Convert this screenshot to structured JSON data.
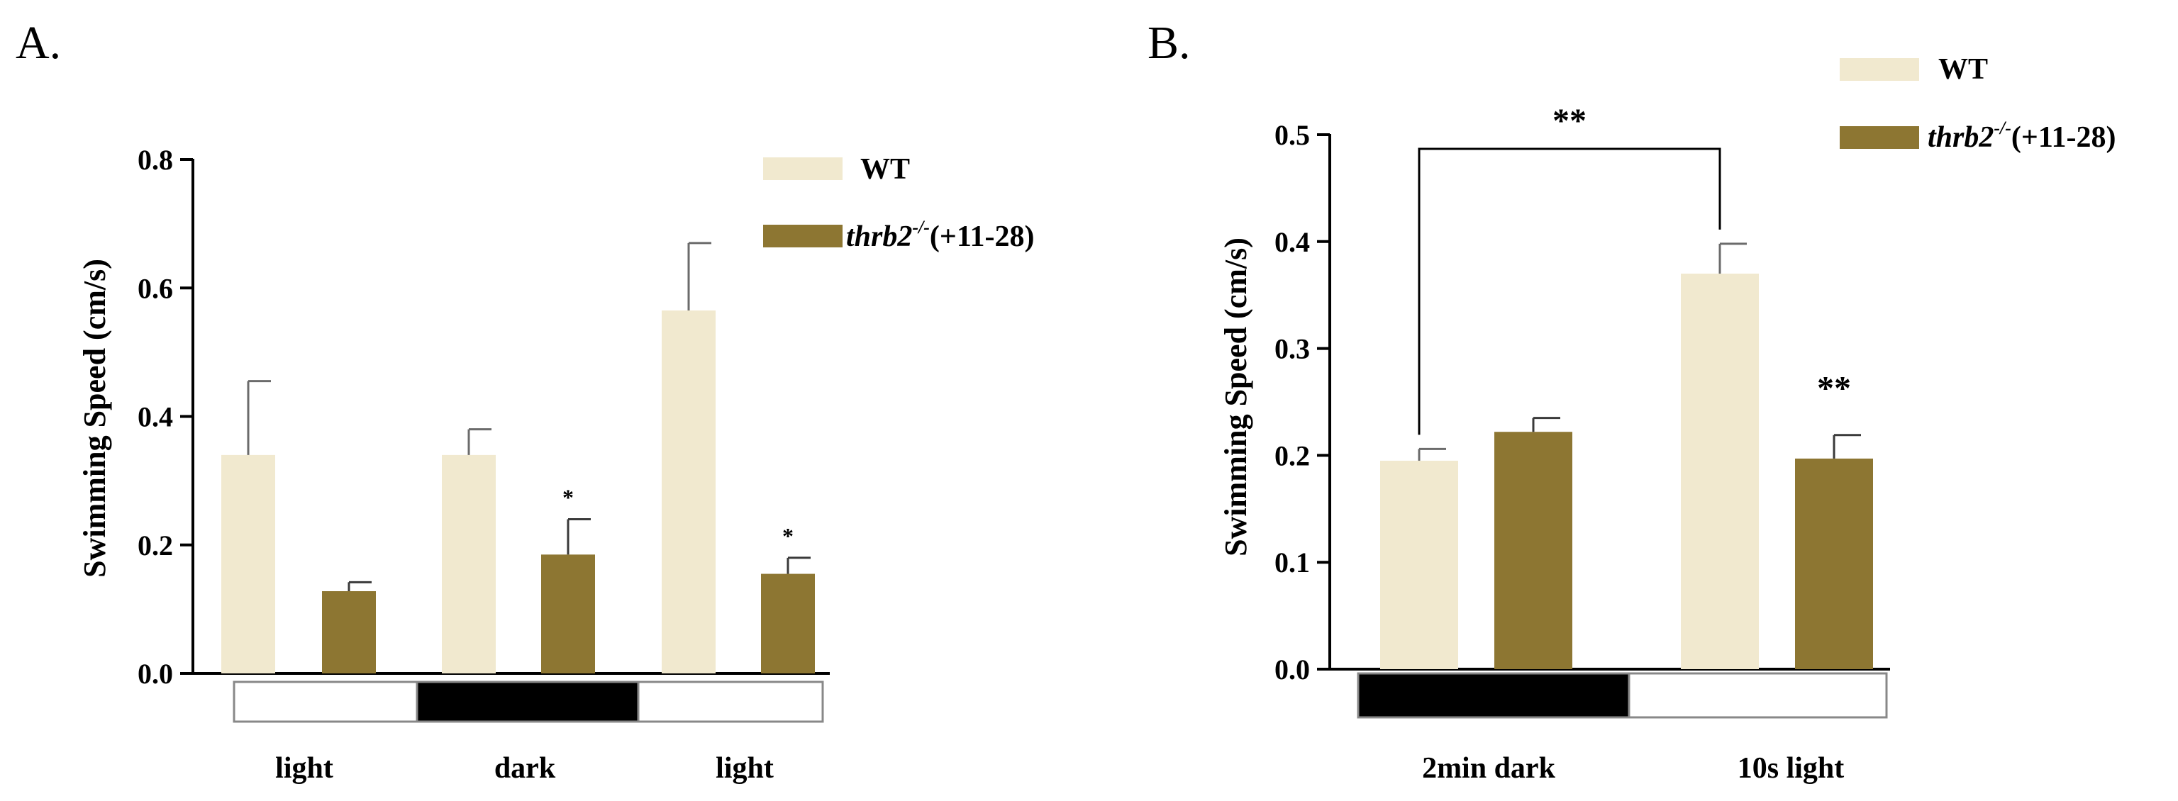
{
  "colors": {
    "wt": "#f1e9cf",
    "mut": "#8d7632",
    "axis": "#000000",
    "dark_bar": "#000000",
    "light_bar": "#ffffff"
  },
  "chart_data": [
    {
      "type": "bar",
      "panel_label": "A.",
      "ylabel": "Swimming Speed (cm/s)",
      "ylim": [
        0,
        0.8
      ],
      "yticks": [
        "0.0",
        "0.2",
        "0.4",
        "0.6",
        "0.8"
      ],
      "ytick_values": [
        0,
        0.2,
        0.4,
        0.6,
        0.8
      ],
      "categories": [
        "light",
        "dark",
        "light"
      ],
      "condition_strip": [
        "light",
        "dark",
        "light"
      ],
      "legend": {
        "wt": "WT",
        "mut_italic": "thrb2",
        "mut_sup": "-/-",
        "mut_rest": "(+11-28)"
      },
      "series": [
        {
          "name": "WT",
          "values": [
            0.34,
            0.34,
            0.565
          ],
          "errors": [
            0.115,
            0.04,
            0.105
          ]
        },
        {
          "name": "thrb2-/-(+11-28)",
          "values": [
            0.128,
            0.185,
            0.155
          ],
          "errors": [
            0.014,
            0.055,
            0.025
          ]
        }
      ],
      "annotations": [
        "",
        "*",
        "*"
      ]
    },
    {
      "type": "bar",
      "panel_label": "B.",
      "ylabel": "Swimming Speed (cm/s)",
      "ylim": [
        0,
        0.5
      ],
      "yticks": [
        "0.0",
        "0.1",
        "0.2",
        "0.3",
        "0.4",
        "0.5"
      ],
      "ytick_values": [
        0,
        0.1,
        0.2,
        0.3,
        0.4,
        0.5
      ],
      "categories": [
        "2min dark",
        "10s light"
      ],
      "condition_strip": [
        "dark",
        "light"
      ],
      "legend": {
        "wt": "WT",
        "mut_italic": "thrb2",
        "mut_sup": "-/-",
        "mut_rest": "(+11-28)"
      },
      "series": [
        {
          "name": "WT",
          "values": [
            0.195,
            0.37
          ],
          "errors": [
            0.011,
            0.028
          ]
        },
        {
          "name": "thrb2-/-(+11-28)",
          "values": [
            0.222,
            0.197
          ],
          "errors": [
            0.013,
            0.022
          ]
        }
      ],
      "annotations": [
        "",
        "**"
      ],
      "bracket_label": "**"
    }
  ]
}
